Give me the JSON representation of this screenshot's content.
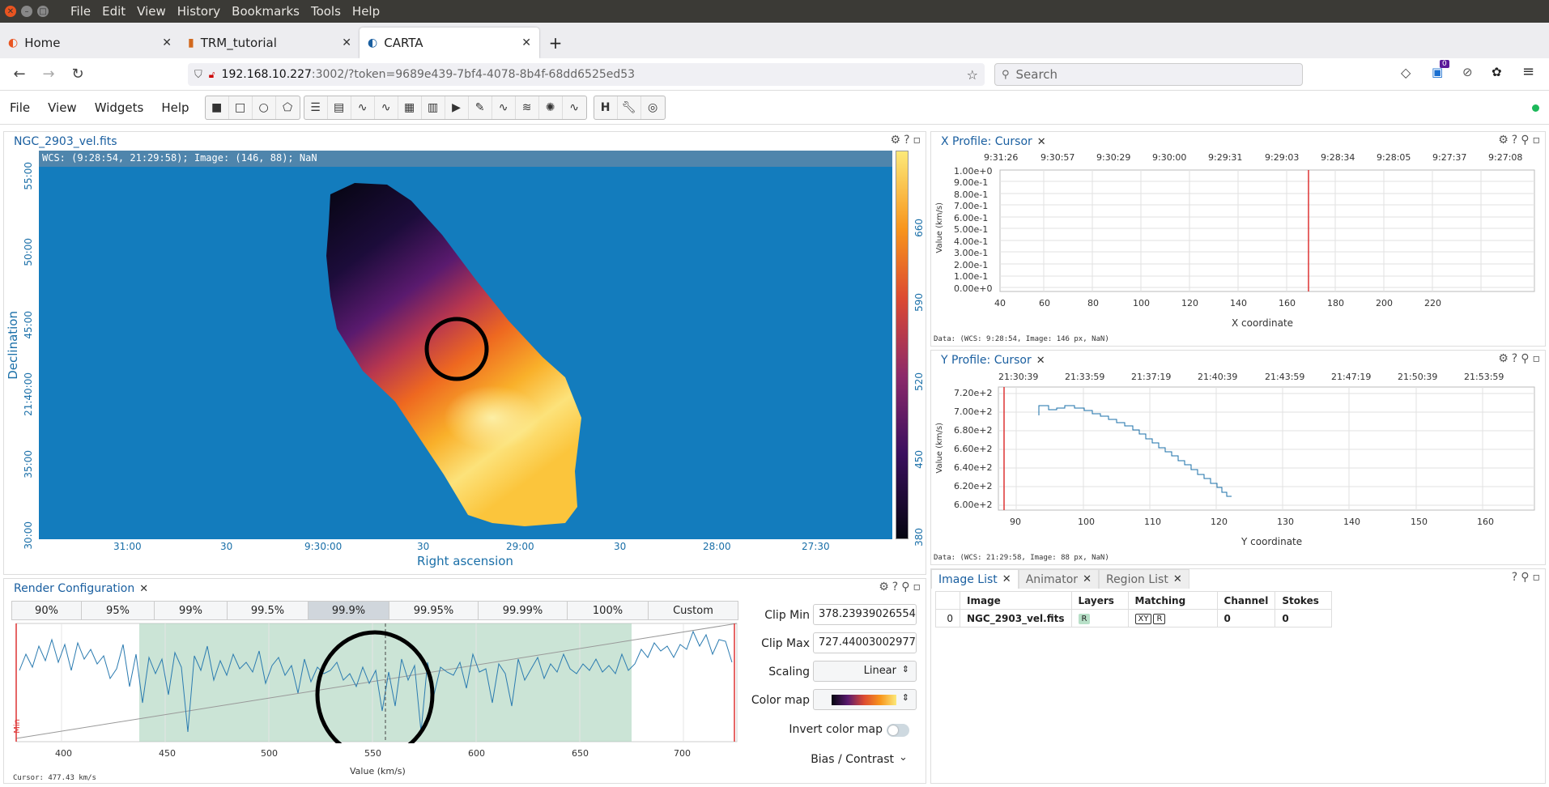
{
  "os": {
    "menu": [
      "File",
      "Edit",
      "View",
      "History",
      "Bookmarks",
      "Tools",
      "Help"
    ]
  },
  "tabs": [
    {
      "label": "Home"
    },
    {
      "label": "TRM_tutorial"
    },
    {
      "label": "CARTA"
    }
  ],
  "nav": {
    "url_host": "192.168.10.227",
    "url_rest": ":3002/?token=9689e439-7bf4-4078-8b4f-68dd6525ed53",
    "search_placeholder": "Search",
    "badge_count": "0"
  },
  "app": {
    "menu": [
      "File",
      "View",
      "Widgets",
      "Help"
    ]
  },
  "image_view": {
    "tab": "NGC_2903_vel.fits",
    "cursor_info": "WCS: (9:28:54, 21:29:58); Image: (146, 88); NaN",
    "xlabel": "Right ascension",
    "ylabel": "Declination",
    "x_ticks": [
      "31:00",
      "30",
      "9:30:00",
      "30",
      "29:00",
      "30",
      "28:00",
      "27:30"
    ],
    "y_ticks": [
      "55:00",
      "50:00",
      "45:00",
      "21:40:00",
      "35:00",
      "30:00"
    ],
    "colorbar_ticks": [
      "660",
      "590",
      "520",
      "450",
      "380"
    ]
  },
  "x_profile": {
    "tab": "X Profile: Cursor",
    "top_ticks": [
      "9:31:26",
      "9:30:57",
      "9:30:29",
      "9:30:00",
      "9:29:31",
      "9:29:03",
      "9:28:34",
      "9:28:05",
      "9:27:37",
      "9:27:08"
    ],
    "y_ticks": [
      "1.00e+0",
      "9.00e-1",
      "8.00e-1",
      "7.00e-1",
      "6.00e-1",
      "5.00e-1",
      "4.00e-1",
      "3.00e-1",
      "2.00e-1",
      "1.00e-1",
      "0.00e+0"
    ],
    "x_ticks": [
      "40",
      "60",
      "80",
      "100",
      "120",
      "140",
      "160",
      "180",
      "200",
      "220"
    ],
    "ylabel": "Value (km/s)",
    "xlabel": "X coordinate",
    "footer": "Data: (WCS: 9:28:54, Image: 146 px, NaN)"
  },
  "y_profile": {
    "tab": "Y Profile: Cursor",
    "top_ticks": [
      "21:30:39",
      "21:33:59",
      "21:37:19",
      "21:40:39",
      "21:43:59",
      "21:47:19",
      "21:50:39",
      "21:53:59"
    ],
    "y_ticks": [
      "7.20e+2",
      "7.00e+2",
      "6.80e+2",
      "6.60e+2",
      "6.40e+2",
      "6.20e+2",
      "6.00e+2"
    ],
    "x_ticks": [
      "90",
      "100",
      "110",
      "120",
      "130",
      "140",
      "150",
      "160"
    ],
    "ylabel": "Value (km/s)",
    "xlabel": "Y coordinate",
    "footer": "Data: (WCS: 21:29:58, Image: 88 px, NaN)"
  },
  "render": {
    "tab": "Render Configuration",
    "percentiles": [
      "90%",
      "95%",
      "99%",
      "99.5%",
      "99.9%",
      "99.95%",
      "99.99%",
      "100%",
      "Custom"
    ],
    "clip_min_label": "Clip Min",
    "clip_min": "378.23939026554",
    "clip_max_label": "Clip Max",
    "clip_max": "727.44003002977",
    "scaling_label": "Scaling",
    "scaling": "Linear",
    "colormap_label": "Color map",
    "invert_label": "Invert color map",
    "bias_label": "Bias / Contrast",
    "hist_x_ticks": [
      "400",
      "450",
      "500",
      "550",
      "600",
      "650",
      "700"
    ],
    "hist_xlabel": "Value (km/s)",
    "min_label": "Min",
    "cursor": "Cursor: 477.43 km/s"
  },
  "image_list": {
    "tabs": [
      "Image List",
      "Animator",
      "Region List"
    ],
    "headers": [
      "Image",
      "Layers",
      "Matching",
      "Channel",
      "Stokes"
    ],
    "row": {
      "index": "0",
      "image": "NGC_2903_vel.fits",
      "layer": "R",
      "match_xy": "XY",
      "match_r": "R",
      "channel": "0",
      "stokes": "0"
    }
  }
}
